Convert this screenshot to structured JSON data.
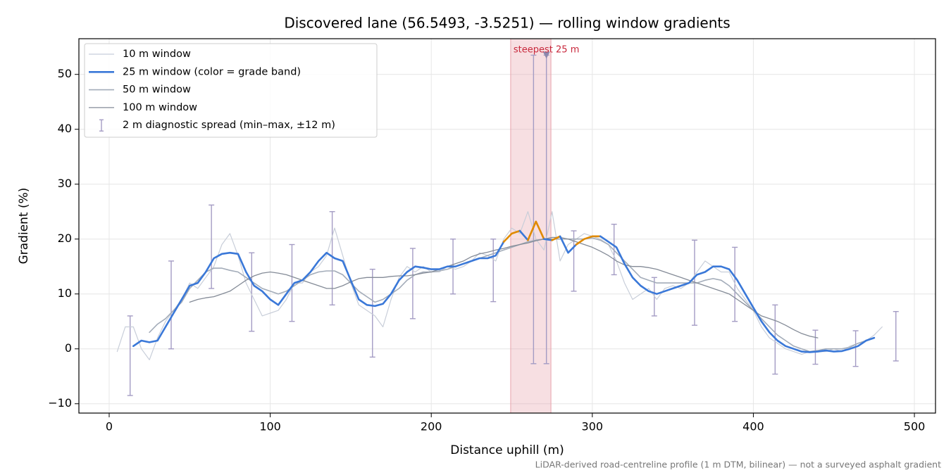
{
  "chart_data": {
    "type": "line",
    "title": "Discovered lane (56.5493, -3.5251) — rolling window gradients",
    "xlabel": "Distance uphill (m)",
    "ylabel": "Gradient (%)",
    "footnote": "LiDAR-derived road-centreline profile (1 m DTM, bilinear) — not a surveyed asphalt gradient",
    "xlim": [
      -18.8,
      513.1
    ],
    "ylim": [
      -11.7,
      56.5
    ],
    "xticks": [
      0,
      100,
      200,
      300,
      400,
      500
    ],
    "yticks": [
      {
        "value": -10,
        "label": "−10"
      },
      0,
      10,
      20,
      30,
      40,
      50
    ],
    "grid": true,
    "legend": "upper left",
    "x": [
      5,
      10,
      15,
      20,
      25,
      30,
      35,
      40,
      45,
      50,
      55,
      60,
      65,
      70,
      75,
      80,
      85,
      90,
      95,
      100,
      105,
      110,
      115,
      120,
      125,
      130,
      135,
      140,
      145,
      150,
      155,
      160,
      165,
      170,
      175,
      180,
      185,
      190,
      195,
      200,
      205,
      210,
      215,
      220,
      225,
      230,
      235,
      240,
      245,
      250,
      255,
      260,
      265,
      270,
      275,
      280,
      285,
      290,
      295,
      300,
      305,
      310,
      315,
      320,
      325,
      330,
      335,
      340,
      345,
      350,
      355,
      360,
      365,
      370,
      375,
      380,
      385,
      390,
      395,
      400,
      405,
      410,
      415,
      420,
      425,
      430,
      435,
      440,
      445,
      450,
      455,
      460,
      465,
      470,
      475,
      480,
      485
    ],
    "series": [
      {
        "name": "10 m window",
        "color": "#c8ced9",
        "width": 1.2,
        "values": [
          -0.5,
          4,
          4,
          0,
          -2,
          2,
          5,
          7,
          9,
          12,
          11,
          13,
          15,
          19,
          21,
          17,
          12,
          9,
          6,
          6.5,
          7,
          9,
          12,
          12,
          14,
          15,
          17,
          22,
          17,
          12,
          8,
          7,
          6,
          4,
          9,
          13,
          15,
          14,
          15,
          14,
          14,
          15,
          14.5,
          15,
          16,
          17.5,
          17,
          16,
          20,
          22,
          21,
          25,
          20,
          18,
          25,
          16,
          19,
          20,
          21,
          20.5,
          20,
          19,
          16,
          12,
          9,
          10,
          11,
          9,
          11,
          11.5,
          11,
          12,
          14,
          16,
          15,
          14,
          14,
          11,
          9,
          7,
          4,
          2,
          1,
          0,
          -0.5,
          -1,
          -0.5,
          -0.5,
          -0.5,
          0,
          -0.5,
          0.5,
          1,
          1.5,
          2.5,
          4,
          null
        ]
      },
      {
        "name": "50 m window",
        "color": "#a3acb9",
        "width": 1.6,
        "values": [
          null,
          null,
          null,
          null,
          3,
          4.5,
          5.5,
          7,
          8.5,
          11,
          12.5,
          14,
          14.7,
          14.7,
          14.3,
          14,
          13,
          12,
          11,
          10.5,
          10,
          10.5,
          11.5,
          12.5,
          13.5,
          14,
          14.2,
          14.2,
          13.5,
          12,
          10.5,
          9.5,
          8.5,
          9,
          10,
          11,
          12.5,
          13.5,
          14,
          14,
          14.2,
          14.5,
          15,
          15.5,
          16,
          16.5,
          17,
          17.5,
          18,
          18.5,
          19,
          19.5,
          19.8,
          20,
          20,
          20,
          20,
          20,
          20,
          20.2,
          19.8,
          19,
          17.5,
          16,
          14.5,
          13,
          12.5,
          12,
          12,
          12,
          12,
          12,
          12,
          12.5,
          12.8,
          12.5,
          11.5,
          10,
          8.5,
          7,
          5.5,
          4,
          2.5,
          1.5,
          0.5,
          0,
          -0.5,
          -0.3,
          0,
          0,
          0,
          0.3,
          1,
          1.5,
          2,
          null,
          null
        ]
      },
      {
        "name": "100 m window",
        "color": "#848b97",
        "width": 1.3,
        "values": [
          null,
          null,
          null,
          null,
          null,
          null,
          null,
          null,
          null,
          8.5,
          9,
          9.3,
          9.5,
          10,
          10.5,
          11.5,
          12.5,
          13.3,
          13.8,
          14,
          13.8,
          13.5,
          13,
          12.5,
          12,
          11.5,
          11,
          11,
          11.5,
          12.2,
          12.8,
          13,
          13,
          13,
          13.2,
          13.3,
          13.3,
          13.5,
          13.8,
          14,
          14.5,
          15,
          15.5,
          16,
          16.8,
          17.3,
          17.6,
          18,
          18.3,
          18.7,
          19,
          19.3,
          19.7,
          20,
          20.3,
          20.3,
          20,
          19.5,
          19,
          18.5,
          17.8,
          17,
          16,
          15.3,
          15,
          15,
          14.8,
          14.5,
          14,
          13.5,
          13,
          12.5,
          12,
          11.5,
          11,
          10.5,
          10,
          9,
          8,
          7,
          6,
          5.5,
          5,
          4.3,
          3.5,
          2.8,
          2.3,
          2,
          null,
          null,
          null,
          null,
          null,
          null,
          null,
          null,
          null
        ]
      },
      {
        "name": "25 m window (color = grade band)",
        "color": "#3a78d8",
        "width": 2.6,
        "values": [
          null,
          null,
          0.5,
          1.5,
          1.2,
          1.5,
          4,
          6.5,
          9,
          11.5,
          12,
          14,
          16.5,
          17.3,
          17.5,
          17.3,
          14,
          11.5,
          10.5,
          9,
          8,
          10,
          12,
          12.5,
          14,
          16,
          17.5,
          16.5,
          16,
          12.5,
          9,
          8,
          7.8,
          8.2,
          10,
          12.5,
          14,
          15,
          14.8,
          14.5,
          14.5,
          15,
          15,
          15.5,
          16,
          16.5,
          16.5,
          17,
          19.5,
          21,
          21.5,
          19.8,
          23.2,
          20,
          19.8,
          20.5,
          17.5,
          19,
          20,
          20.5,
          20.5,
          19.5,
          18.5,
          15.5,
          13,
          11.5,
          10.5,
          10,
          10.5,
          11,
          11.5,
          12,
          13.5,
          14,
          15,
          15,
          14.5,
          12.5,
          10,
          7.5,
          5,
          3,
          1.5,
          0.5,
          0,
          -0.5,
          -0.6,
          -0.5,
          -0.3,
          -0.5,
          -0.4,
          0,
          0.5,
          1.5,
          2,
          null,
          null
        ],
        "colors": [
          null,
          null,
          "#3a78d8",
          "#3a78d8",
          "#3a78d8",
          "#3a78d8",
          "#3a78d8",
          "#3a78d8",
          "#3a78d8",
          "#3a78d8",
          "#3a78d8",
          "#3a78d8",
          "#3a78d8",
          "#3a78d8",
          "#3a78d8",
          "#3a78d8",
          "#3a78d8",
          "#3a78d8",
          "#3a78d8",
          "#3a78d8",
          "#3a78d8",
          "#3a78d8",
          "#3a78d8",
          "#3a78d8",
          "#3a78d8",
          "#3a78d8",
          "#3a78d8",
          "#3a78d8",
          "#3a78d8",
          "#3a78d8",
          "#3a78d8",
          "#3a78d8",
          "#3a78d8",
          "#3a78d8",
          "#3a78d8",
          "#3a78d8",
          "#3a78d8",
          "#3a78d8",
          "#3a78d8",
          "#3a78d8",
          "#3a78d8",
          "#3a78d8",
          "#3a78d8",
          "#3a78d8",
          "#3a78d8",
          "#3a78d8",
          "#3a78d8",
          "#3a78d8",
          "#3a78d8",
          "#e08a00",
          "#e08a00",
          "#3a78d8",
          "#e08a00",
          "#e08a00",
          "#3a78d8",
          "#e08a00",
          "#3a78d8",
          "#3a78d8",
          "#e08a00",
          "#e08a00",
          "#e08a00",
          "#3a78d8",
          "#3a78d8",
          "#3a78d8",
          "#3a78d8",
          "#3a78d8",
          "#3a78d8",
          "#3a78d8",
          "#3a78d8",
          "#3a78d8",
          "#3a78d8",
          "#3a78d8",
          "#3a78d8",
          "#3a78d8",
          "#3a78d8",
          "#3a78d8",
          "#3a78d8",
          "#3a78d8",
          "#3a78d8",
          "#3a78d8",
          "#3a78d8",
          "#3a78d8",
          "#3a78d8",
          "#3a78d8",
          "#3a78d8",
          "#3a78d8",
          "#3a78d8",
          "#3a78d8",
          "#3a78d8",
          "#3a78d8",
          "#3a78d8",
          "#3a78d8",
          "#3a78d8",
          "#3a78d8",
          "#3a78d8",
          null,
          null
        ]
      }
    ],
    "errorbars": {
      "name": "2 m diagnostic spread (min–max, ±12 m)",
      "color": "#a49cc4",
      "x": [
        13,
        38.5,
        63.5,
        88.5,
        113.5,
        138.5,
        163.5,
        188.5,
        213.5,
        238.5,
        263.5,
        271.5,
        288.5,
        313.5,
        338.5,
        363.5,
        388.5,
        413.5,
        438.5,
        463.5,
        488.5
      ],
      "low": [
        -8.5,
        0,
        11,
        3.2,
        5,
        8,
        -1.5,
        5.5,
        10,
        8.6,
        -2.7,
        -2.7,
        10.5,
        13.5,
        6,
        4.3,
        5,
        -4.6,
        -2.8,
        -3.2,
        -2.2
      ],
      "high": [
        6,
        16,
        26.2,
        17.5,
        19,
        25,
        14.5,
        18.3,
        20,
        20,
        53.5,
        53.5,
        21.5,
        22.7,
        13,
        19.8,
        18.5,
        8,
        3.4,
        3.3,
        6.8
      ]
    },
    "span": [
      249.3,
      274.3
    ],
    "span_color": "#e8a3ab",
    "marker": {
      "x": 271.5,
      "y": 53.5,
      "color": "#8c88ad"
    },
    "annotation": {
      "text": "steepest 25 m",
      "color": "#c8283c"
    }
  }
}
